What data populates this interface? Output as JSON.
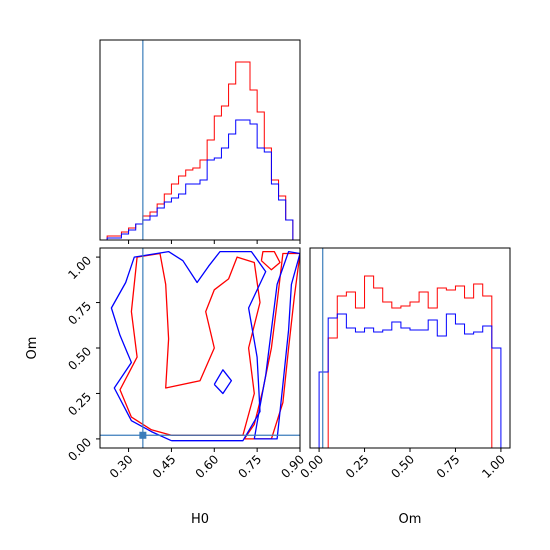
{
  "chart_data": [
    {
      "type": "histogram",
      "variable": "H0",
      "xlim": [
        0.2,
        0.9
      ],
      "truth": 0.35,
      "truth_color": "#3b7dbb",
      "bins": [
        0.2,
        0.225,
        0.25,
        0.275,
        0.3,
        0.325,
        0.35,
        0.375,
        0.4,
        0.425,
        0.45,
        0.475,
        0.5,
        0.525,
        0.55,
        0.575,
        0.6,
        0.625,
        0.65,
        0.675,
        0.7,
        0.725,
        0.75,
        0.775,
        0.8,
        0.825,
        0.85,
        0.875,
        0.9
      ],
      "series": [
        {
          "color": "#ff0000",
          "values": [
            0,
            2,
            2,
            4,
            6,
            8,
            12,
            14,
            18,
            23,
            28,
            32,
            35,
            36,
            40,
            50,
            62,
            67,
            78,
            89,
            89,
            75,
            64,
            46,
            30,
            22,
            10,
            0
          ]
        },
        {
          "color": "#0000ff",
          "values": [
            0,
            1,
            1,
            3,
            5,
            8,
            10,
            12,
            16,
            19,
            21,
            23,
            28,
            28,
            30,
            40,
            41,
            46,
            53,
            60,
            60,
            58,
            46,
            44,
            28,
            20,
            10,
            0
          ]
        }
      ]
    },
    {
      "type": "contour",
      "x_variable": "H0",
      "y_variable": "Om",
      "xlim": [
        0.2,
        0.9
      ],
      "ylim": [
        -0.05,
        1.05
      ],
      "xlabel": "H0",
      "ylabel": "Om",
      "xticks": [
        "0.30",
        "0.45",
        "0.60",
        "0.75",
        "0.90"
      ],
      "xtick_values": [
        0.3,
        0.45,
        0.6,
        0.75,
        0.9
      ],
      "yticks": [
        "0.00",
        "0.25",
        "0.50",
        "0.75",
        "1.00"
      ],
      "ytick_values": [
        0.0,
        0.25,
        0.5,
        0.75,
        1.0
      ],
      "truth": {
        "x": 0.35,
        "y": 0.02
      },
      "truth_color": "#3b7dbb",
      "contours": [
        {
          "color": "#ff0000",
          "points": [
            [
              0.705,
              0.0
            ],
            [
              0.8,
              0.0
            ],
            [
              0.84,
              0.2
            ],
            [
              0.86,
              0.5
            ],
            [
              0.88,
              0.78
            ],
            [
              0.9,
              1.02
            ],
            [
              0.84,
              1.02
            ],
            [
              0.82,
              0.75
            ],
            [
              0.8,
              0.5
            ],
            [
              0.77,
              0.27
            ],
            [
              0.74,
              0.08
            ],
            [
              0.705,
              0.0
            ]
          ]
        },
        {
          "color": "#ff0000",
          "points": [
            [
              0.45,
              0.02
            ],
            [
              0.7,
              0.02
            ],
            [
              0.74,
              0.25
            ],
            [
              0.72,
              0.5
            ],
            [
              0.76,
              0.75
            ],
            [
              0.74,
              0.97
            ],
            [
              0.68,
              1.0
            ],
            [
              0.65,
              0.88
            ],
            [
              0.6,
              0.82
            ],
            [
              0.57,
              0.7
            ],
            [
              0.6,
              0.5
            ],
            [
              0.55,
              0.32
            ],
            [
              0.43,
              0.28
            ],
            [
              0.44,
              0.55
            ],
            [
              0.43,
              0.85
            ],
            [
              0.41,
              1.02
            ],
            [
              0.33,
              1.0
            ],
            [
              0.31,
              0.7
            ],
            [
              0.33,
              0.45
            ],
            [
              0.27,
              0.27
            ],
            [
              0.31,
              0.12
            ],
            [
              0.38,
              0.05
            ],
            [
              0.45,
              0.02
            ]
          ]
        },
        {
          "color": "#0000ff",
          "points": [
            [
              0.74,
              0.0
            ],
            [
              0.82,
              0.0
            ],
            [
              0.84,
              0.3
            ],
            [
              0.86,
              0.6
            ],
            [
              0.87,
              0.85
            ],
            [
              0.9,
              1.02
            ],
            [
              0.86,
              1.03
            ],
            [
              0.82,
              0.85
            ],
            [
              0.8,
              0.6
            ],
            [
              0.78,
              0.35
            ],
            [
              0.76,
              0.18
            ],
            [
              0.74,
              0.0
            ]
          ]
        },
        {
          "color": "#0000ff",
          "points": [
            [
              0.45,
              -0.01
            ],
            [
              0.7,
              -0.01
            ],
            [
              0.76,
              0.15
            ],
            [
              0.75,
              0.45
            ],
            [
              0.72,
              0.72
            ],
            [
              0.78,
              0.92
            ],
            [
              0.73,
              1.03
            ],
            [
              0.62,
              1.03
            ],
            [
              0.58,
              0.95
            ],
            [
              0.54,
              0.86
            ],
            [
              0.49,
              0.98
            ],
            [
              0.44,
              1.03
            ],
            [
              0.32,
              1.0
            ],
            [
              0.29,
              0.86
            ],
            [
              0.24,
              0.72
            ],
            [
              0.27,
              0.57
            ],
            [
              0.31,
              0.42
            ],
            [
              0.25,
              0.28
            ],
            [
              0.31,
              0.1
            ],
            [
              0.38,
              0.04
            ],
            [
              0.45,
              -0.01
            ]
          ]
        },
        {
          "color": "#0000ff",
          "points": [
            [
              0.6,
              0.3
            ],
            [
              0.63,
              0.25
            ],
            [
              0.66,
              0.32
            ],
            [
              0.63,
              0.38
            ],
            [
              0.6,
              0.3
            ]
          ]
        },
        {
          "color": "#ff0000",
          "points": [
            [
              0.765,
              0.98
            ],
            [
              0.8,
              0.93
            ],
            [
              0.83,
              0.97
            ],
            [
              0.81,
              1.03
            ],
            [
              0.77,
              1.03
            ],
            [
              0.765,
              0.98
            ]
          ]
        }
      ]
    },
    {
      "type": "histogram",
      "variable": "Om",
      "xlabel": "Om",
      "xlim": [
        -0.05,
        1.05
      ],
      "xticks": [
        "0.00",
        "0.25",
        "0.50",
        "0.75",
        "1.00"
      ],
      "xtick_values": [
        0.0,
        0.25,
        0.5,
        0.75,
        1.0
      ],
      "truth": 0.02,
      "truth_color": "#3b7dbb",
      "bins": [
        -0.05,
        0.0,
        0.05,
        0.1,
        0.15,
        0.2,
        0.25,
        0.3,
        0.35,
        0.4,
        0.45,
        0.5,
        0.55,
        0.6,
        0.65,
        0.7,
        0.75,
        0.8,
        0.85,
        0.9,
        0.95,
        1.0,
        1.05
      ],
      "series": [
        {
          "color": "#ff0000",
          "values": [
            0,
            0,
            55,
            76,
            78,
            70,
            86,
            80,
            73,
            70,
            71,
            73,
            78,
            70,
            80,
            79,
            81,
            75,
            82,
            76,
            0,
            0
          ]
        },
        {
          "color": "#0000ff",
          "values": [
            0,
            38,
            65,
            67,
            60,
            58,
            60,
            58,
            59,
            63,
            60,
            59,
            59,
            64,
            56,
            67,
            62,
            57,
            58,
            61,
            50,
            0
          ]
        }
      ]
    }
  ]
}
